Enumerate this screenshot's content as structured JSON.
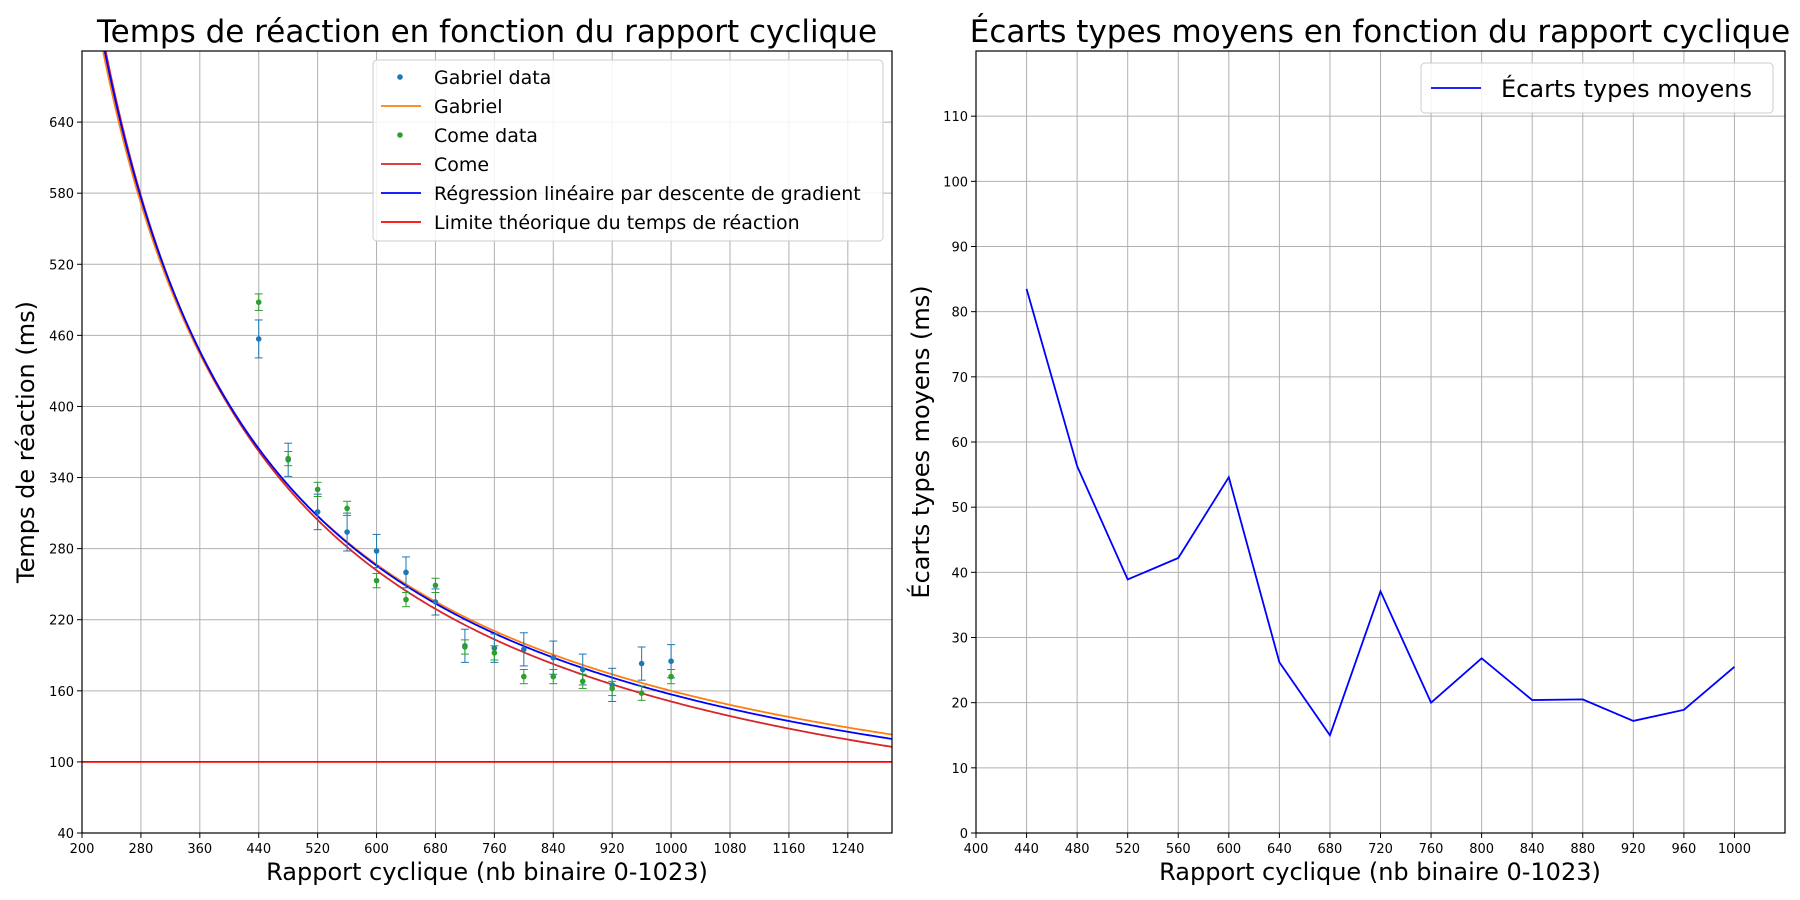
{
  "chart_data": [
    {
      "type": "scatter",
      "title": "Temps de réaction en fonction du rapport cyclique",
      "xlabel": "Rapport cyclique (nb binaire 0-1023)",
      "ylabel": "Temps de réaction (ms)",
      "xlim": [
        200,
        1300
      ],
      "ylim": [
        40,
        700
      ],
      "xticks": [
        200,
        280,
        360,
        440,
        520,
        600,
        680,
        760,
        840,
        920,
        1000,
        1080,
        1160,
        1240
      ],
      "yticks": [
        40,
        100,
        160,
        220,
        280,
        340,
        400,
        460,
        520,
        580,
        640
      ],
      "grid": true,
      "legend_position": "top-right",
      "colors": {
        "gabriel_data": "#1f77b4",
        "gabriel": "#ff7f0e",
        "come_data": "#2ca02c",
        "come": "#d62728",
        "regression": "#0000ff",
        "limit": "#ff0000"
      },
      "series": [
        {
          "name": "Gabriel data",
          "kind": "points",
          "x": [
            440,
            480,
            520,
            560,
            600,
            640,
            680,
            720,
            760,
            800,
            840,
            880,
            920,
            960,
            1000
          ],
          "y": [
            457,
            355,
            311,
            294,
            278,
            260,
            235,
            198,
            196,
            195,
            188,
            178,
            165,
            183,
            185
          ],
          "err": [
            16,
            14,
            15,
            16,
            14,
            13,
            11,
            14,
            12,
            14,
            14,
            13,
            14,
            14,
            14
          ]
        },
        {
          "name": "Gabriel",
          "kind": "curve",
          "fit": "reciprocal",
          "a": 160000,
          "b": 0,
          "x_start": 200
        },
        {
          "name": "Come data",
          "kind": "points",
          "x": [
            440,
            480,
            520,
            560,
            600,
            640,
            680,
            720,
            760,
            800,
            840,
            880,
            920,
            960,
            1000
          ],
          "y": [
            488,
            356,
            330,
            314,
            253,
            237,
            249,
            197,
            192,
            172,
            172,
            168,
            162,
            158,
            172
          ],
          "err": [
            7,
            6,
            6,
            6,
            6,
            6,
            6,
            6,
            6,
            6,
            6,
            6,
            6,
            6,
            6
          ]
        },
        {
          "name": "Come",
          "kind": "curve",
          "fit": "reciprocal",
          "a": 166000,
          "b": -15,
          "x_start": 200
        },
        {
          "name": "Régression linéaire par descente de gradient",
          "kind": "curve",
          "fit": "reciprocal",
          "a": 163000,
          "b": -6,
          "x_start": 200
        },
        {
          "name": "Limite théorique du temps de réaction",
          "kind": "hline",
          "y": 100
        }
      ]
    },
    {
      "type": "line",
      "title": "Écarts types moyens en fonction du rapport cyclique",
      "xlabel": "Rapport cyclique (nb binaire 0-1023)",
      "ylabel": "Écarts types moyens (ms)",
      "xlim": [
        400,
        1040
      ],
      "ylim": [
        0,
        120
      ],
      "xticks": [
        400,
        440,
        480,
        520,
        560,
        600,
        640,
        680,
        720,
        760,
        800,
        840,
        880,
        920,
        960,
        1000
      ],
      "yticks": [
        0,
        10,
        20,
        30,
        40,
        50,
        60,
        70,
        80,
        90,
        100,
        110
      ],
      "grid": true,
      "legend_position": "top-right",
      "series": [
        {
          "name": "Écarts types moyens",
          "color": "#0000ff",
          "x": [
            440,
            480,
            520,
            560,
            600,
            640,
            680,
            720,
            760,
            800,
            840,
            880,
            920,
            960,
            1000
          ],
          "y": [
            83.5,
            56.3,
            38.9,
            42.2,
            54.6,
            26.2,
            15.0,
            37.1,
            20.0,
            26.8,
            20.4,
            20.5,
            17.2,
            18.9,
            25.5
          ]
        }
      ]
    }
  ]
}
